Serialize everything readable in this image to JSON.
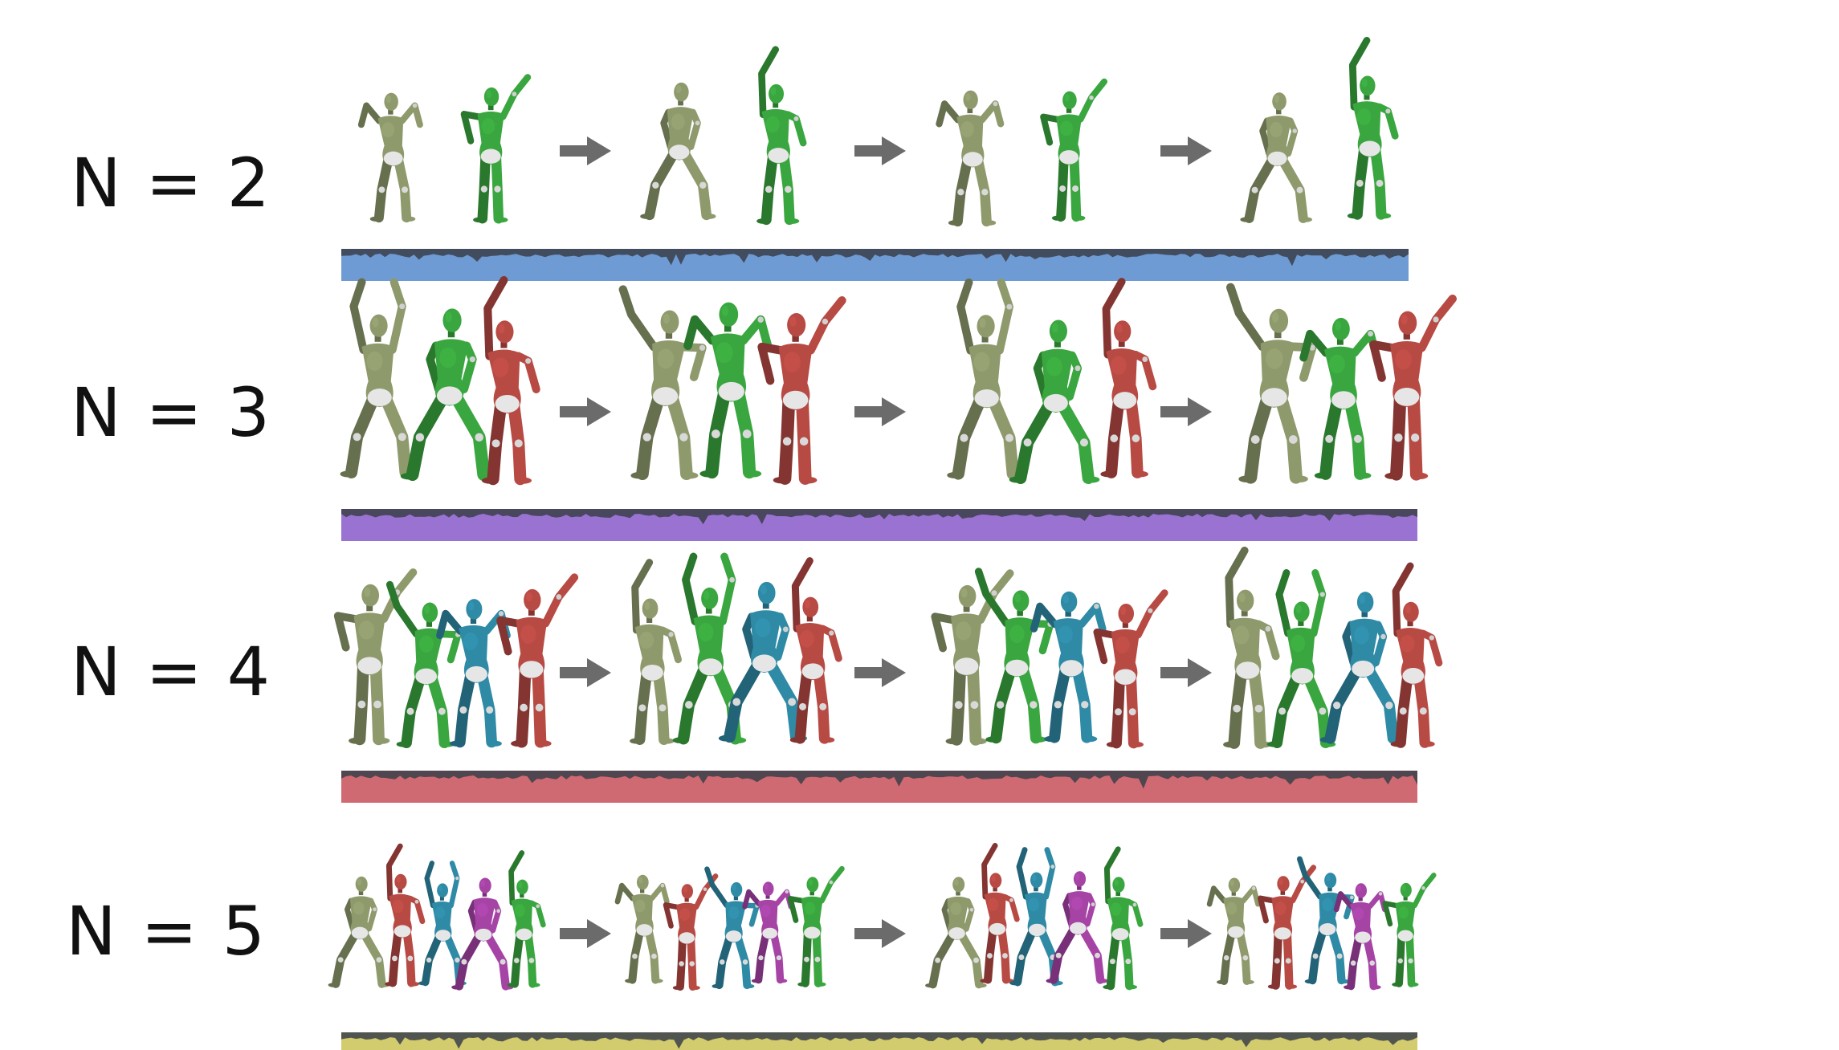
{
  "rows": [
    {
      "label": "N = 2",
      "num_dancers": 2,
      "bar_color": "#6f9bd5",
      "dancer_colors": [
        "#8e9a6c",
        "#3aa63f"
      ]
    },
    {
      "label": "N = 3",
      "num_dancers": 3,
      "bar_color": "#9a72d2",
      "dancer_colors": [
        "#8e9a6c",
        "#3aa63f",
        "#b84a44"
      ]
    },
    {
      "label": "N = 4",
      "num_dancers": 4,
      "bar_color": "#d06a72",
      "dancer_colors": [
        "#8e9a6c",
        "#3aa63f",
        "#2f8aa6",
        "#b84a44"
      ]
    },
    {
      "label": "N = 5",
      "num_dancers": 5,
      "bar_color": "#d3cc6e",
      "dancer_colors": [
        "#8e9a6c",
        "#b84a44",
        "#2f8aa6",
        "#a644a6",
        "#3aa63f"
      ]
    }
  ],
  "arrow_color": "#6b6b6b",
  "bar_dark_color": "#3a3f4a",
  "frames_per_row": 4,
  "arrows_per_row": 3
}
